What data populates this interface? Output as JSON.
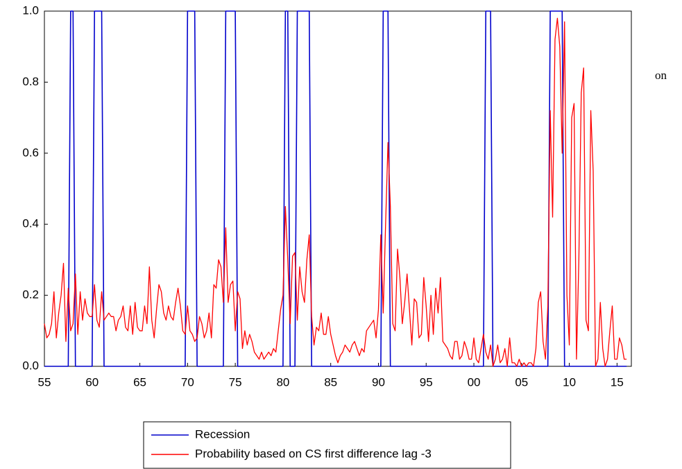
{
  "chart_data": {
    "type": "line",
    "annotation": "on",
    "legend": "bottom",
    "xlim": [
      1955,
      2016.5
    ],
    "ylim": [
      0,
      1
    ],
    "xticks": [
      {
        "value": 1955,
        "label": "55"
      },
      {
        "value": 1960,
        "label": "60"
      },
      {
        "value": 1965,
        "label": "65"
      },
      {
        "value": 1970,
        "label": "70"
      },
      {
        "value": 1975,
        "label": "75"
      },
      {
        "value": 1980,
        "label": "80"
      },
      {
        "value": 1985,
        "label": "85"
      },
      {
        "value": 1990,
        "label": "90"
      },
      {
        "value": 1995,
        "label": "95"
      },
      {
        "value": 2000,
        "label": "00"
      },
      {
        "value": 2005,
        "label": "05"
      },
      {
        "value": 2010,
        "label": "10"
      },
      {
        "value": 2015,
        "label": "15"
      }
    ],
    "yticks": [
      {
        "value": 0,
        "label": "0.0"
      },
      {
        "value": 0.2,
        "label": "0.2"
      },
      {
        "value": 0.4,
        "label": "0.4"
      },
      {
        "value": 0.6,
        "label": "0.6"
      },
      {
        "value": 0.8,
        "label": "0.8"
      },
      {
        "value": 1,
        "label": "1.0"
      }
    ],
    "x": [
      1955,
      1955.25,
      1955.5,
      1955.75,
      1956,
      1956.25,
      1956.5,
      1956.75,
      1957,
      1957.25,
      1957.5,
      1957.75,
      1958,
      1958.25,
      1958.5,
      1958.75,
      1959,
      1959.25,
      1959.5,
      1959.75,
      1960,
      1960.25,
      1960.5,
      1960.75,
      1961,
      1961.25,
      1961.5,
      1961.75,
      1962,
      1962.25,
      1962.5,
      1962.75,
      1963,
      1963.25,
      1963.5,
      1963.75,
      1964,
      1964.25,
      1964.5,
      1964.75,
      1965,
      1965.25,
      1965.5,
      1965.75,
      1966,
      1966.25,
      1966.5,
      1966.75,
      1967,
      1967.25,
      1967.5,
      1967.75,
      1968,
      1968.25,
      1968.5,
      1968.75,
      1969,
      1969.25,
      1969.5,
      1969.75,
      1970,
      1970.25,
      1970.5,
      1970.75,
      1971,
      1971.25,
      1971.5,
      1971.75,
      1972,
      1972.25,
      1972.5,
      1972.75,
      1973,
      1973.25,
      1973.5,
      1973.75,
      1974,
      1974.25,
      1974.5,
      1974.75,
      1975,
      1975.25,
      1975.5,
      1975.75,
      1976,
      1976.25,
      1976.5,
      1976.75,
      1977,
      1977.25,
      1977.5,
      1977.75,
      1978,
      1978.25,
      1978.5,
      1978.75,
      1979,
      1979.25,
      1979.5,
      1979.75,
      1980,
      1980.25,
      1980.5,
      1980.75,
      1981,
      1981.25,
      1981.5,
      1981.75,
      1982,
      1982.25,
      1982.5,
      1982.75,
      1983,
      1983.25,
      1983.5,
      1983.75,
      1984,
      1984.25,
      1984.5,
      1984.75,
      1985,
      1985.25,
      1985.5,
      1985.75,
      1986,
      1986.25,
      1986.5,
      1986.75,
      1987,
      1987.25,
      1987.5,
      1987.75,
      1988,
      1988.25,
      1988.5,
      1988.75,
      1989,
      1989.25,
      1989.5,
      1989.75,
      1990,
      1990.25,
      1990.5,
      1990.75,
      1991,
      1991.25,
      1991.5,
      1991.75,
      1992,
      1992.25,
      1992.5,
      1992.75,
      1993,
      1993.25,
      1993.5,
      1993.75,
      1994,
      1994.25,
      1994.5,
      1994.75,
      1995,
      1995.25,
      1995.5,
      1995.75,
      1996,
      1996.25,
      1996.5,
      1996.75,
      1997,
      1997.25,
      1997.5,
      1997.75,
      1998,
      1998.25,
      1998.5,
      1998.75,
      1999,
      1999.25,
      1999.5,
      1999.75,
      2000,
      2000.25,
      2000.5,
      2000.75,
      2001,
      2001.25,
      2001.5,
      2001.75,
      2002,
      2002.25,
      2002.5,
      2002.75,
      2003,
      2003.25,
      2003.5,
      2003.75,
      2004,
      2004.25,
      2004.5,
      2004.75,
      2005,
      2005.25,
      2005.5,
      2005.75,
      2006,
      2006.25,
      2006.5,
      2006.75,
      2007,
      2007.25,
      2007.5,
      2007.75,
      2008,
      2008.25,
      2008.5,
      2008.75,
      2009,
      2009.25,
      2009.5,
      2009.75,
      2010,
      2010.25,
      2010.5,
      2010.75,
      2011,
      2011.25,
      2011.5,
      2011.75,
      2012,
      2012.25,
      2012.5,
      2012.75,
      2013,
      2013.25,
      2013.5,
      2013.75,
      2014,
      2014.25,
      2014.5,
      2014.75,
      2015,
      2015.25,
      2015.5,
      2015.75,
      2016
    ],
    "series": [
      {
        "name": "Recession",
        "color": "#0000cc",
        "values": [
          0,
          0,
          0,
          0,
          0,
          0,
          0,
          0,
          0,
          0,
          0,
          1,
          1,
          0,
          0,
          0,
          0,
          0,
          0,
          0,
          0,
          1,
          1,
          1,
          1,
          0,
          0,
          0,
          0,
          0,
          0,
          0,
          0,
          0,
          0,
          0,
          0,
          0,
          0,
          0,
          0,
          0,
          0,
          0,
          0,
          0,
          0,
          0,
          0,
          0,
          0,
          0,
          0,
          0,
          0,
          0,
          0,
          0,
          0,
          0,
          1,
          1,
          1,
          1,
          0,
          0,
          0,
          0,
          0,
          0,
          0,
          0,
          0,
          0,
          0,
          0,
          1,
          1,
          1,
          1,
          1,
          0,
          0,
          0,
          0,
          0,
          0,
          0,
          0,
          0,
          0,
          0,
          0,
          0,
          0,
          0,
          0,
          0,
          0,
          0,
          0,
          1,
          1,
          0,
          0,
          0,
          1,
          1,
          1,
          1,
          1,
          1,
          0,
          0,
          0,
          0,
          0,
          0,
          0,
          0,
          0,
          0,
          0,
          0,
          0,
          0,
          0,
          0,
          0,
          0,
          0,
          0,
          0,
          0,
          0,
          0,
          0,
          0,
          0,
          0,
          0,
          0,
          1,
          1,
          1,
          0,
          0,
          0,
          0,
          0,
          0,
          0,
          0,
          0,
          0,
          0,
          0,
          0,
          0,
          0,
          0,
          0,
          0,
          0,
          0,
          0,
          0,
          0,
          0,
          0,
          0,
          0,
          0,
          0,
          0,
          0,
          0,
          0,
          0,
          0,
          0,
          0,
          0,
          0,
          0,
          1,
          1,
          1,
          0,
          0,
          0,
          0,
          0,
          0,
          0,
          0,
          0,
          0,
          0,
          0,
          0,
          0,
          0,
          0,
          0,
          0,
          0,
          0,
          0,
          0,
          0,
          0,
          1,
          1,
          1,
          1,
          1,
          1,
          0,
          0,
          0,
          0,
          0,
          0,
          0,
          0,
          0,
          0,
          0,
          0,
          0,
          0,
          0,
          0,
          0,
          0,
          0,
          0,
          0,
          0,
          0,
          0,
          0,
          0,
          0
        ]
      },
      {
        "name": "Probability based on CS first difference lag -3",
        "color": "#ff0000",
        "values": [
          0.12,
          0.08,
          0.09,
          0.12,
          0.21,
          0.08,
          0.15,
          0.2,
          0.29,
          0.07,
          0.22,
          0.1,
          0.12,
          0.26,
          0.09,
          0.21,
          0.13,
          0.19,
          0.15,
          0.14,
          0.14,
          0.23,
          0.13,
          0.11,
          0.21,
          0.13,
          0.14,
          0.15,
          0.14,
          0.14,
          0.1,
          0.13,
          0.14,
          0.17,
          0.11,
          0.1,
          0.17,
          0.09,
          0.18,
          0.11,
          0.1,
          0.1,
          0.17,
          0.12,
          0.28,
          0.13,
          0.08,
          0.16,
          0.23,
          0.21,
          0.15,
          0.13,
          0.17,
          0.14,
          0.13,
          0.18,
          0.22,
          0.17,
          0.1,
          0.09,
          0.17,
          0.1,
          0.09,
          0.07,
          0.08,
          0.14,
          0.12,
          0.08,
          0.1,
          0.15,
          0.08,
          0.23,
          0.22,
          0.3,
          0.28,
          0.18,
          0.39,
          0.18,
          0.23,
          0.24,
          0.1,
          0.21,
          0.19,
          0.05,
          0.1,
          0.06,
          0.09,
          0.07,
          0.04,
          0.03,
          0.02,
          0.04,
          0.02,
          0.03,
          0.04,
          0.03,
          0.05,
          0.04,
          0.1,
          0.16,
          0.2,
          0.45,
          0.3,
          0.12,
          0.31,
          0.32,
          0.13,
          0.28,
          0.21,
          0.18,
          0.3,
          0.37,
          0.14,
          0.06,
          0.11,
          0.1,
          0.15,
          0.09,
          0.09,
          0.14,
          0.09,
          0.06,
          0.03,
          0.01,
          0.03,
          0.04,
          0.06,
          0.05,
          0.04,
          0.06,
          0.07,
          0.05,
          0.03,
          0.05,
          0.04,
          0.1,
          0.11,
          0.12,
          0.13,
          0.08,
          0.16,
          0.37,
          0.15,
          0.4,
          0.63,
          0.45,
          0.12,
          0.1,
          0.33,
          0.25,
          0.12,
          0.18,
          0.26,
          0.16,
          0.06,
          0.19,
          0.18,
          0.08,
          0.09,
          0.25,
          0.17,
          0.07,
          0.2,
          0.09,
          0.22,
          0.15,
          0.25,
          0.07,
          0.06,
          0.05,
          0.03,
          0.02,
          0.07,
          0.07,
          0.02,
          0.03,
          0.07,
          0.05,
          0.02,
          0.02,
          0.08,
          0.02,
          0.01,
          0.05,
          0.09,
          0.04,
          0.02,
          0.06,
          0,
          0.02,
          0.06,
          0.01,
          0.02,
          0.05,
          0,
          0.08,
          0.01,
          0.01,
          0,
          0.02,
          0,
          0.01,
          0,
          0.01,
          0.01,
          0,
          0.05,
          0.18,
          0.21,
          0.07,
          0.02,
          0.17,
          0.72,
          0.42,
          0.92,
          0.98,
          0.9,
          0.6,
          0.97,
          0.2,
          0.06,
          0.7,
          0.74,
          0.02,
          0.3,
          0.77,
          0.84,
          0.13,
          0.1,
          0.72,
          0.55,
          0,
          0.02,
          0.18,
          0.05,
          0,
          0.02,
          0.1,
          0.17,
          0.02,
          0.02,
          0.08,
          0.06,
          0.02,
          0.02
        ]
      }
    ]
  }
}
